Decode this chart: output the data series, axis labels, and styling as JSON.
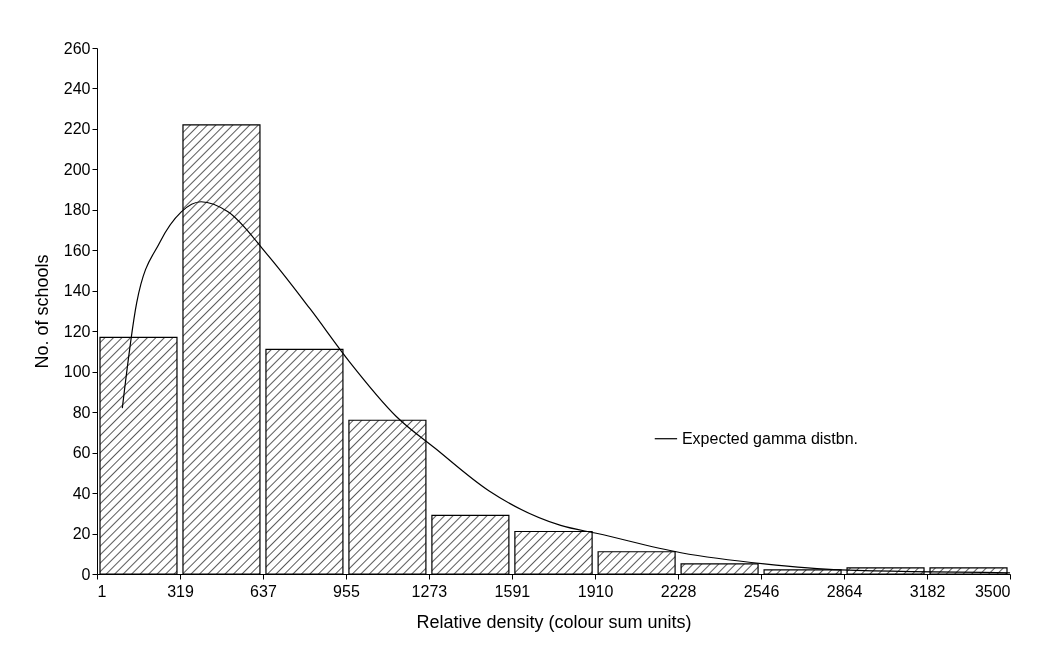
{
  "chart_data": {
    "type": "histogram",
    "xlabel": "Relative density (colour sum units)",
    "ylabel": "No. of schools",
    "bins": [
      1,
      319,
      637,
      955,
      1273,
      1591,
      1910,
      2228,
      2546,
      2864,
      3182,
      3500
    ],
    "values": [
      117,
      222,
      111,
      76,
      29,
      21,
      11,
      5,
      2,
      3,
      3
    ],
    "color": "#000000",
    "xlim": [
      1,
      3500
    ],
    "xticks": [
      1,
      319,
      637,
      955,
      1273,
      1591,
      1910,
      2228,
      2546,
      2864,
      3182,
      3500
    ],
    "ylim": [
      0,
      260
    ],
    "yticks": [
      0,
      20,
      40,
      60,
      80,
      100,
      120,
      140,
      160,
      180,
      200,
      220,
      240,
      260
    ],
    "grid": false,
    "legend": "right",
    "series": [
      {
        "name": "Expected gamma distbn.",
        "type": "line",
        "color": "#000000",
        "x": [
          98,
          153,
          242,
          324,
          400,
          503,
          653,
          818,
          968,
          1147,
          1298,
          1504,
          1778,
          1919,
          2239,
          2558,
          2853,
          3500
        ],
        "values": [
          82,
          134,
          164,
          179,
          184,
          179,
          158,
          131,
          105,
          78,
          62,
          41,
          24,
          20,
          10.5,
          5,
          2,
          0.6
        ]
      }
    ]
  }
}
